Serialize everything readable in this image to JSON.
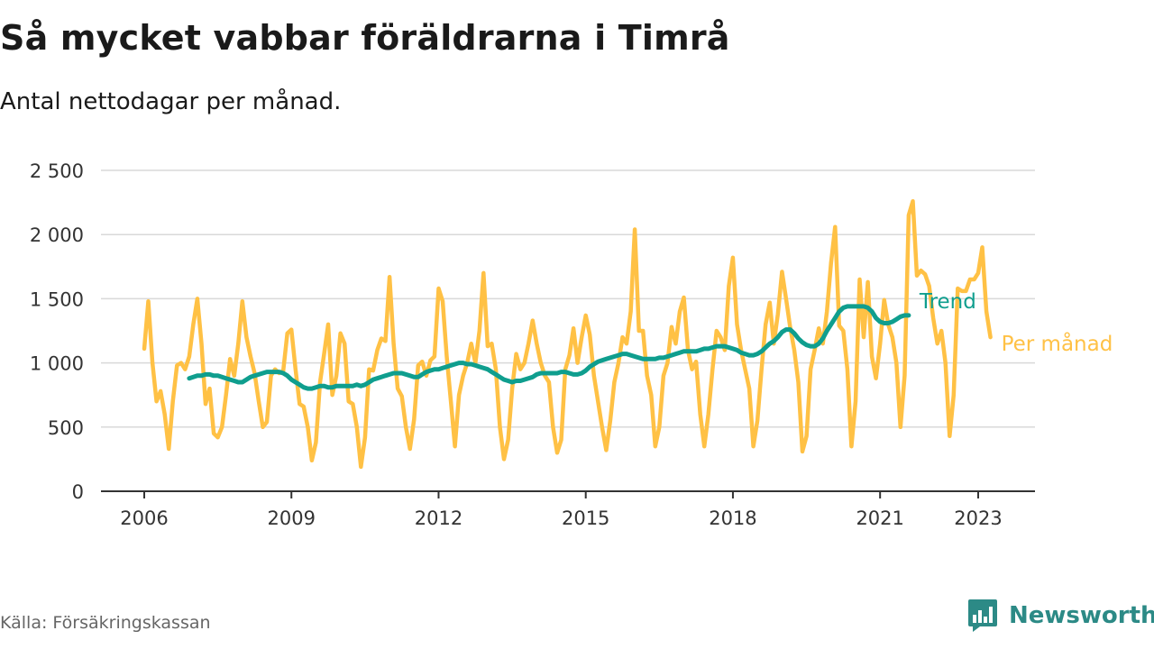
{
  "header": {
    "title": "Så mycket vabbar föräldrarna i Timrå",
    "subtitle": "Antal nettodagar per månad."
  },
  "footer": {
    "source": "Källa: Försäkringskassan",
    "brand": "Newsworthy",
    "brand_icon": "bar-chart-speech-bubble-icon"
  },
  "colors": {
    "monthly": "#FFC145",
    "trend": "#0F9E8E",
    "grid": "#D9D9D9",
    "axis": "#333333",
    "brand": "#2C8A86"
  },
  "chart_data": {
    "type": "line",
    "xlim": [
      "2006-01",
      "2023-06"
    ],
    "ylim": [
      0,
      2500
    ],
    "yticks": [
      0,
      500,
      1000,
      1500,
      2000,
      2500
    ],
    "ytick_labels": [
      "0",
      "500",
      "1 000",
      "1 500",
      "2 000",
      "2 500"
    ],
    "xticks": [
      "2006-01",
      "2009-01",
      "2012-01",
      "2015-01",
      "2018-01",
      "2021-01",
      "2023-01"
    ],
    "xtick_labels": [
      "2006",
      "2009",
      "2012",
      "2015",
      "2018",
      "2021",
      "2023"
    ],
    "grid": "horizontal",
    "legend": "end-of-line labels",
    "series": [
      {
        "name": "Per månad",
        "start": "2006-01",
        "frequency": "monthly",
        "values": [
          1110,
          1480,
          1000,
          700,
          780,
          600,
          330,
          700,
          980,
          1000,
          950,
          1050,
          1300,
          1500,
          1150,
          680,
          800,
          450,
          420,
          500,
          750,
          1030,
          900,
          1150,
          1480,
          1200,
          1050,
          920,
          700,
          500,
          540,
          900,
          950,
          920,
          940,
          1230,
          1260,
          950,
          680,
          660,
          500,
          240,
          380,
          850,
          1070,
          1300,
          750,
          900,
          1230,
          1150,
          700,
          680,
          500,
          190,
          420,
          950,
          940,
          1100,
          1190,
          1170,
          1670,
          1150,
          800,
          740,
          500,
          330,
          560,
          980,
          1010,
          900,
          1020,
          1050,
          1580,
          1480,
          1050,
          700,
          350,
          750,
          900,
          1000,
          1150,
          1000,
          1250,
          1700,
          1130,
          1150,
          950,
          500,
          250,
          400,
          800,
          1070,
          950,
          1000,
          1150,
          1330,
          1150,
          1000,
          900,
          850,
          500,
          300,
          400,
          950,
          1060,
          1270,
          1000,
          1200,
          1370,
          1220,
          900,
          700,
          500,
          320,
          550,
          850,
          1000,
          1200,
          1150,
          1400,
          2040,
          1250,
          1250,
          900,
          750,
          350,
          500,
          900,
          1000,
          1280,
          1150,
          1400,
          1510,
          1100,
          950,
          1010,
          600,
          350,
          600,
          950,
          1250,
          1200,
          1100,
          1600,
          1820,
          1300,
          1100,
          950,
          800,
          350,
          550,
          950,
          1300,
          1470,
          1150,
          1380,
          1710,
          1500,
          1280,
          1100,
          850,
          310,
          430,
          950,
          1100,
          1270,
          1150,
          1400,
          1780,
          2060,
          1290,
          1250,
          950,
          350,
          700,
          1650,
          1200,
          1630,
          1050,
          880,
          1150,
          1490,
          1300,
          1200,
          1000,
          500,
          900,
          2150,
          2260,
          1680,
          1720,
          1690,
          1600,
          1350,
          1150,
          1250,
          1000,
          430,
          750,
          1580,
          1560,
          1560,
          1650,
          1650,
          1700,
          1900,
          1400,
          1200
        ]
      },
      {
        "name": "Trend",
        "start": "2006-12",
        "frequency": "monthly",
        "values": [
          880,
          890,
          900,
          900,
          910,
          910,
          900,
          900,
          890,
          880,
          870,
          860,
          850,
          850,
          870,
          890,
          900,
          910,
          920,
          930,
          930,
          930,
          930,
          920,
          900,
          870,
          850,
          830,
          810,
          800,
          800,
          810,
          820,
          820,
          810,
          810,
          820,
          820,
          820,
          820,
          820,
          830,
          820,
          830,
          850,
          870,
          880,
          890,
          900,
          910,
          920,
          920,
          920,
          910,
          900,
          890,
          890,
          910,
          930,
          940,
          950,
          950,
          960,
          970,
          980,
          990,
          1000,
          1000,
          990,
          990,
          980,
          970,
          960,
          950,
          930,
          910,
          890,
          870,
          860,
          850,
          860,
          860,
          870,
          880,
          890,
          910,
          920,
          920,
          920,
          920,
          920,
          930,
          930,
          920,
          910,
          910,
          920,
          940,
          970,
          990,
          1010,
          1020,
          1030,
          1040,
          1050,
          1060,
          1070,
          1070,
          1060,
          1050,
          1040,
          1030,
          1030,
          1030,
          1030,
          1040,
          1040,
          1050,
          1060,
          1070,
          1080,
          1090,
          1090,
          1090,
          1090,
          1100,
          1110,
          1110,
          1120,
          1130,
          1130,
          1130,
          1120,
          1110,
          1100,
          1080,
          1070,
          1060,
          1060,
          1070,
          1090,
          1120,
          1150,
          1170,
          1200,
          1240,
          1260,
          1260,
          1230,
          1190,
          1160,
          1140,
          1130,
          1130,
          1150,
          1190,
          1250,
          1300,
          1350,
          1400,
          1430,
          1440,
          1440,
          1440,
          1440,
          1440,
          1430,
          1400,
          1350,
          1320,
          1310,
          1310,
          1320,
          1340,
          1360,
          1370,
          1370
        ]
      }
    ]
  }
}
